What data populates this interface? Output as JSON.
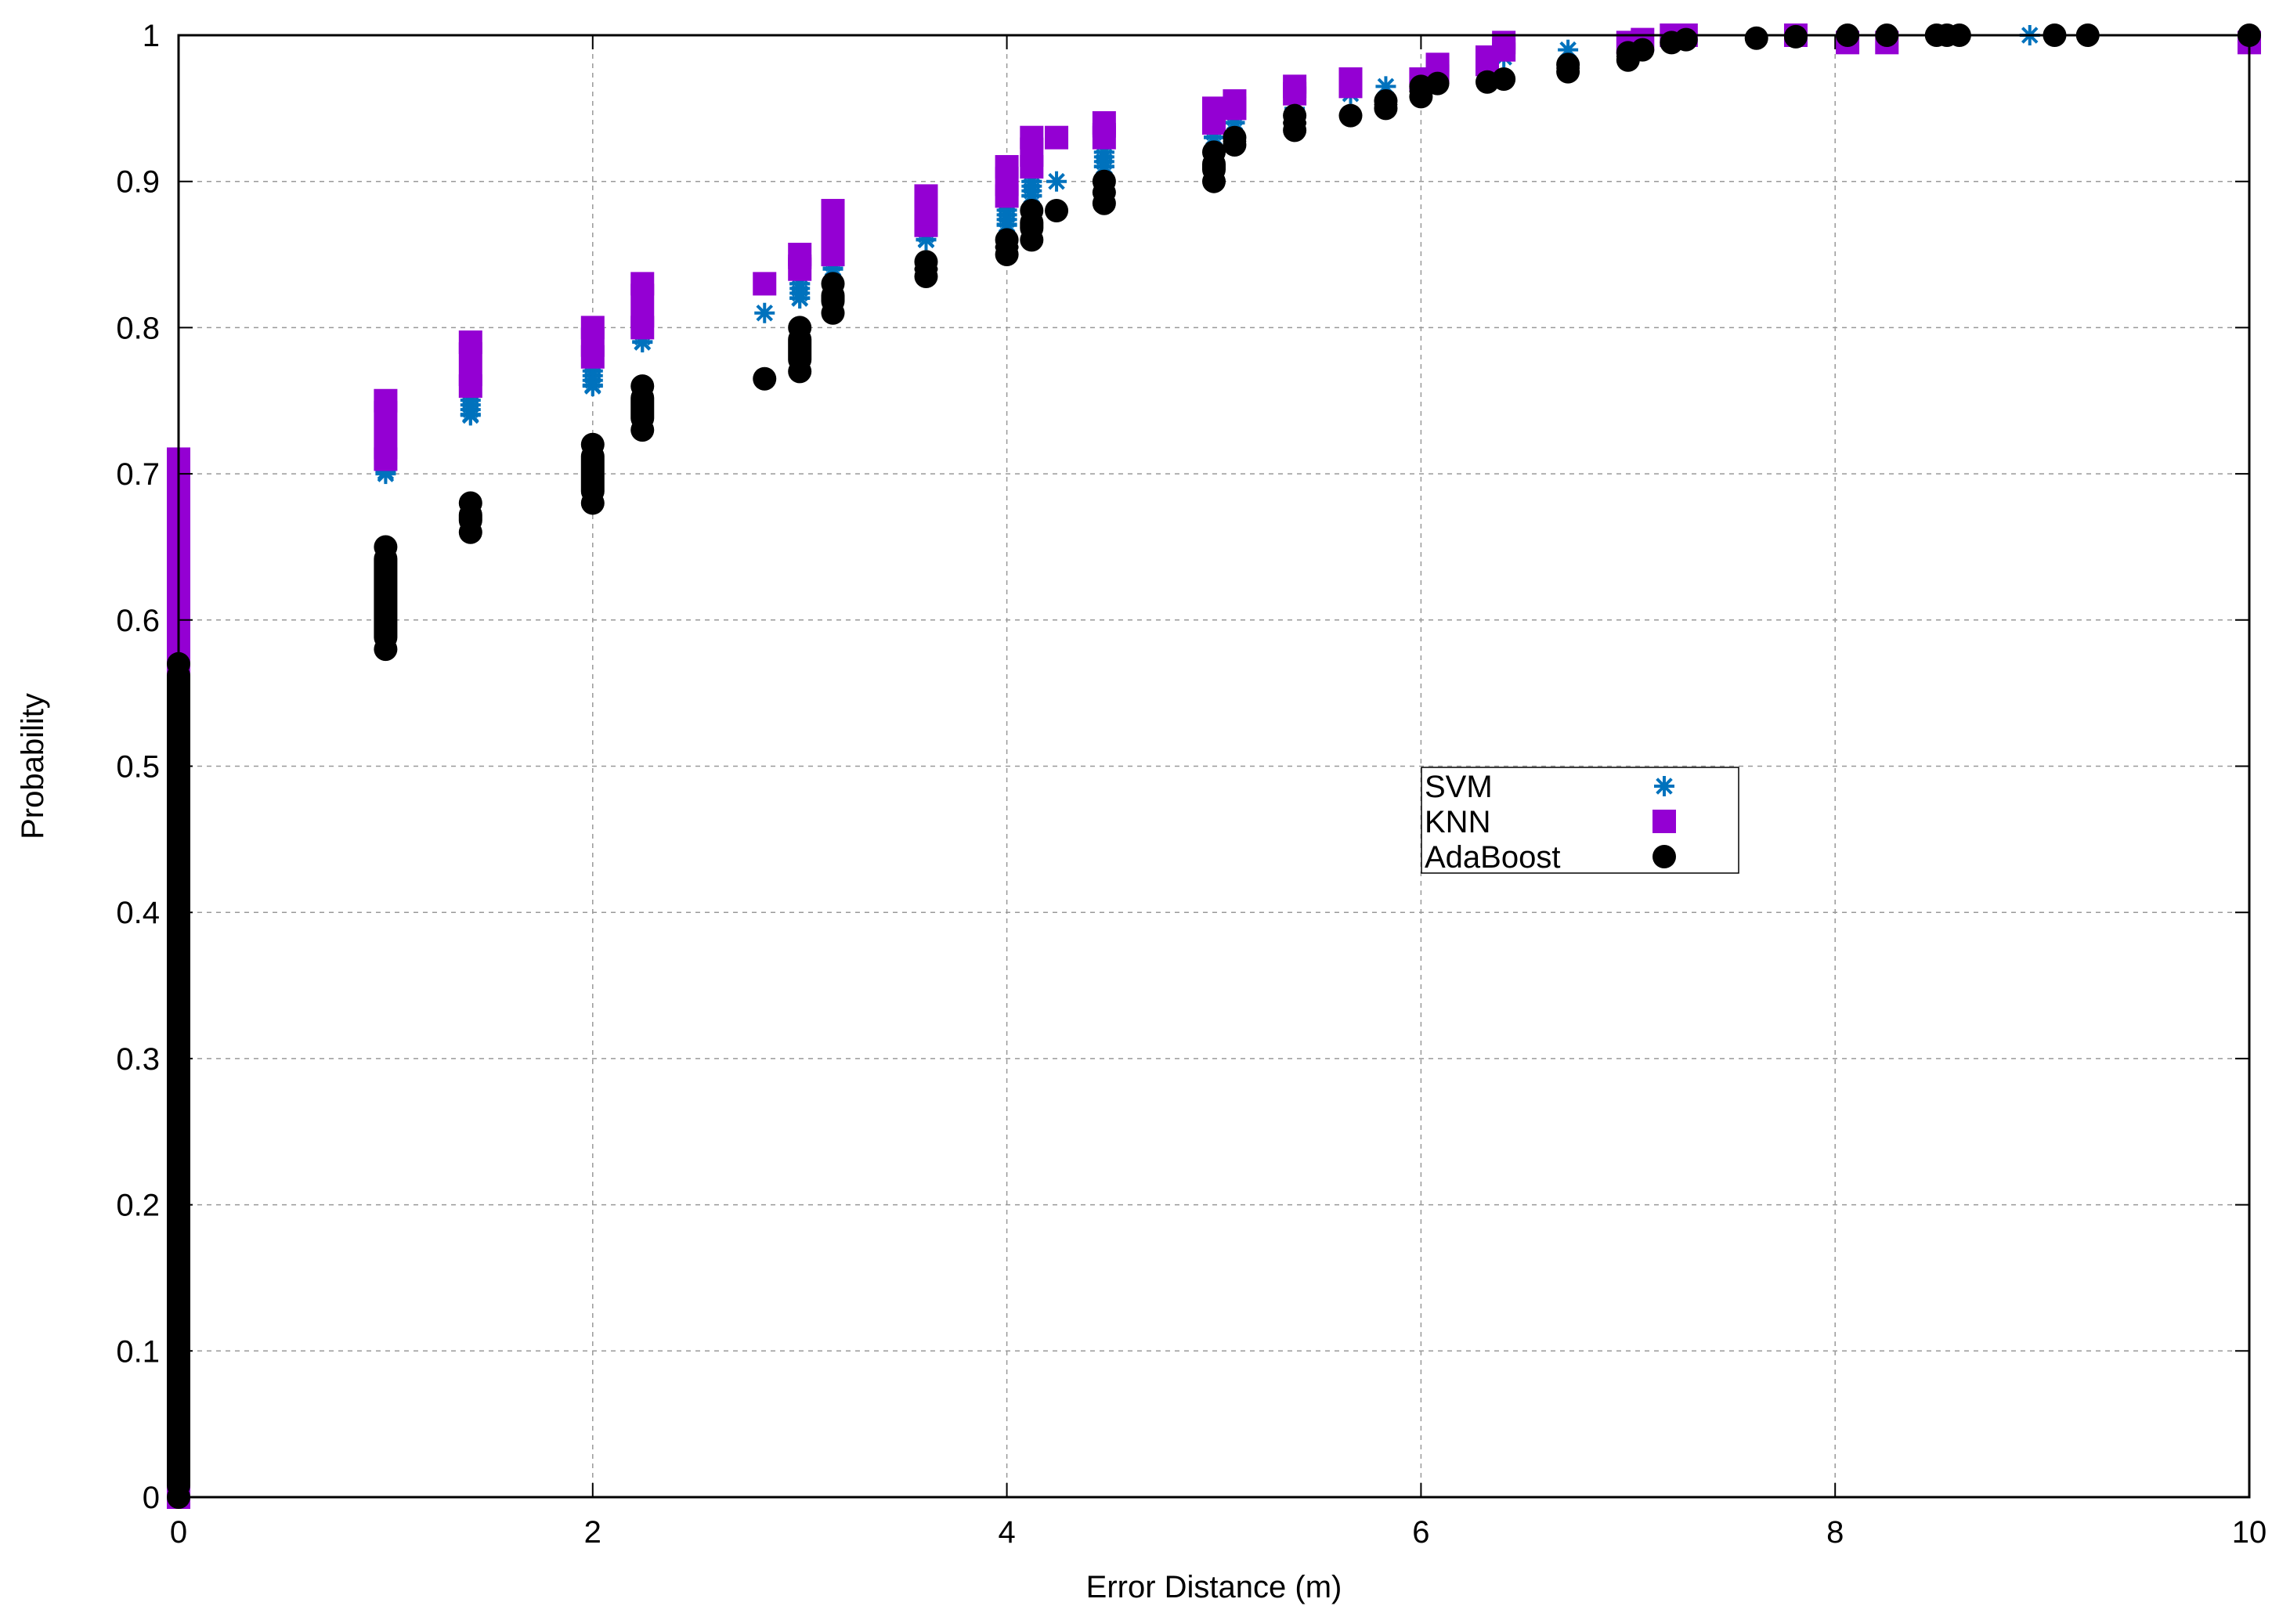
{
  "chart_data": {
    "type": "scatter",
    "title": "",
    "xlabel": "Error Distance (m)",
    "ylabel": "Probability",
    "xlim": [
      0,
      10
    ],
    "ylim": [
      0,
      1
    ],
    "xticks": [
      "0",
      "2",
      "4",
      "6",
      "8",
      "10"
    ],
    "xtick_values": [
      0,
      2,
      4,
      6,
      8,
      10
    ],
    "yticks": [
      "0",
      "0.1",
      "0.2",
      "0.3",
      "0.4",
      "0.5",
      "0.6",
      "0.7",
      "0.8",
      "0.9",
      "1"
    ],
    "ytick_values": [
      0,
      0.1,
      0.2,
      0.3,
      0.4,
      0.5,
      0.6,
      0.7,
      0.8,
      0.9,
      1
    ],
    "grid": true,
    "legend_position": "center-right",
    "series": [
      {
        "name": "SVM",
        "marker": "asterisk",
        "color": "#0072bd",
        "points": [
          [
            0,
            0.0
          ],
          [
            0,
            0.7
          ],
          [
            1.0,
            0.7
          ],
          [
            1.0,
            0.74
          ],
          [
            1.41,
            0.74
          ],
          [
            1.41,
            0.76
          ],
          [
            2.0,
            0.76
          ],
          [
            2.0,
            0.78
          ],
          [
            2.24,
            0.79
          ],
          [
            2.24,
            0.8
          ],
          [
            2.83,
            0.81
          ],
          [
            3.0,
            0.82
          ],
          [
            3.0,
            0.83
          ],
          [
            3.16,
            0.84
          ],
          [
            3.16,
            0.86
          ],
          [
            3.61,
            0.86
          ],
          [
            3.61,
            0.87
          ],
          [
            4.0,
            0.87
          ],
          [
            4.0,
            0.89
          ],
          [
            4.12,
            0.89
          ],
          [
            4.12,
            0.9
          ],
          [
            4.24,
            0.9
          ],
          [
            4.47,
            0.91
          ],
          [
            4.47,
            0.92
          ],
          [
            5.0,
            0.93
          ],
          [
            5.0,
            0.94
          ],
          [
            5.1,
            0.94
          ],
          [
            5.1,
            0.95
          ],
          [
            5.39,
            0.95
          ],
          [
            5.66,
            0.96
          ],
          [
            5.83,
            0.965
          ],
          [
            6.0,
            0.97
          ],
          [
            6.08,
            0.975
          ],
          [
            6.32,
            0.98
          ],
          [
            6.4,
            0.985
          ],
          [
            6.71,
            0.99
          ],
          [
            7.0,
            0.995
          ],
          [
            7.07,
            0.997
          ],
          [
            7.21,
            0.999
          ],
          [
            7.28,
            1.0
          ],
          [
            7.81,
            1.0
          ],
          [
            8.94,
            1.0
          ],
          [
            10.0,
            1.0
          ]
        ]
      },
      {
        "name": "KNN",
        "marker": "square",
        "color": "#9400d3",
        "points": [
          [
            0,
            0.0
          ],
          [
            0,
            0.71
          ],
          [
            1.0,
            0.71
          ],
          [
            1.0,
            0.75
          ],
          [
            1.41,
            0.76
          ],
          [
            1.41,
            0.79
          ],
          [
            2.0,
            0.78
          ],
          [
            2.0,
            0.8
          ],
          [
            2.24,
            0.8
          ],
          [
            2.24,
            0.83
          ],
          [
            2.83,
            0.83
          ],
          [
            3.0,
            0.84
          ],
          [
            3.0,
            0.85
          ],
          [
            3.16,
            0.85
          ],
          [
            3.16,
            0.88
          ],
          [
            3.61,
            0.87
          ],
          [
            3.61,
            0.89
          ],
          [
            4.0,
            0.89
          ],
          [
            4.0,
            0.91
          ],
          [
            4.12,
            0.91
          ],
          [
            4.12,
            0.93
          ],
          [
            4.24,
            0.93
          ],
          [
            4.47,
            0.93
          ],
          [
            4.47,
            0.94
          ],
          [
            5.0,
            0.94
          ],
          [
            5.0,
            0.95
          ],
          [
            5.1,
            0.95
          ],
          [
            5.1,
            0.955
          ],
          [
            5.39,
            0.96
          ],
          [
            5.39,
            0.965
          ],
          [
            5.66,
            0.965
          ],
          [
            5.66,
            0.97
          ],
          [
            6.0,
            0.97
          ],
          [
            6.08,
            0.975
          ],
          [
            6.08,
            0.98
          ],
          [
            6.32,
            0.98
          ],
          [
            6.32,
            0.985
          ],
          [
            6.4,
            0.99
          ],
          [
            6.4,
            0.995
          ],
          [
            7.0,
            0.995
          ],
          [
            7.07,
            0.997
          ],
          [
            7.21,
            1.0
          ],
          [
            7.28,
            1.0
          ],
          [
            7.81,
            1.0
          ],
          [
            8.06,
            0.995
          ],
          [
            8.25,
            0.995
          ],
          [
            10.0,
            0.995
          ]
        ]
      },
      {
        "name": "AdaBoost",
        "marker": "circle",
        "color": "#000000",
        "points": [
          [
            0,
            0.0
          ],
          [
            0,
            0.57
          ],
          [
            1.0,
            0.58
          ],
          [
            1.0,
            0.65
          ],
          [
            1.41,
            0.66
          ],
          [
            1.41,
            0.68
          ],
          [
            2.0,
            0.68
          ],
          [
            2.0,
            0.72
          ],
          [
            2.24,
            0.73
          ],
          [
            2.24,
            0.76
          ],
          [
            2.83,
            0.765
          ],
          [
            3.0,
            0.77
          ],
          [
            3.0,
            0.8
          ],
          [
            3.16,
            0.81
          ],
          [
            3.16,
            0.83
          ],
          [
            3.61,
            0.835
          ],
          [
            3.61,
            0.845
          ],
          [
            4.0,
            0.85
          ],
          [
            4.0,
            0.86
          ],
          [
            4.12,
            0.86
          ],
          [
            4.12,
            0.88
          ],
          [
            4.24,
            0.88
          ],
          [
            4.47,
            0.885
          ],
          [
            4.47,
            0.9
          ],
          [
            5.0,
            0.9
          ],
          [
            5.0,
            0.92
          ],
          [
            5.1,
            0.925
          ],
          [
            5.1,
            0.93
          ],
          [
            5.39,
            0.935
          ],
          [
            5.39,
            0.945
          ],
          [
            5.66,
            0.945
          ],
          [
            5.83,
            0.95
          ],
          [
            5.83,
            0.955
          ],
          [
            6.0,
            0.958
          ],
          [
            6.0,
            0.965
          ],
          [
            6.08,
            0.967
          ],
          [
            6.32,
            0.968
          ],
          [
            6.4,
            0.97
          ],
          [
            6.71,
            0.975
          ],
          [
            6.71,
            0.98
          ],
          [
            7.0,
            0.983
          ],
          [
            7.0,
            0.988
          ],
          [
            7.07,
            0.99
          ],
          [
            7.21,
            0.995
          ],
          [
            7.28,
            0.997
          ],
          [
            7.62,
            0.998
          ],
          [
            7.81,
            0.999
          ],
          [
            8.06,
            1.0
          ],
          [
            8.25,
            1.0
          ],
          [
            8.49,
            1.0
          ],
          [
            8.54,
            1.0
          ],
          [
            8.6,
            1.0
          ],
          [
            9.06,
            1.0
          ],
          [
            9.22,
            1.0
          ],
          [
            10.0,
            1.0
          ]
        ]
      }
    ]
  }
}
